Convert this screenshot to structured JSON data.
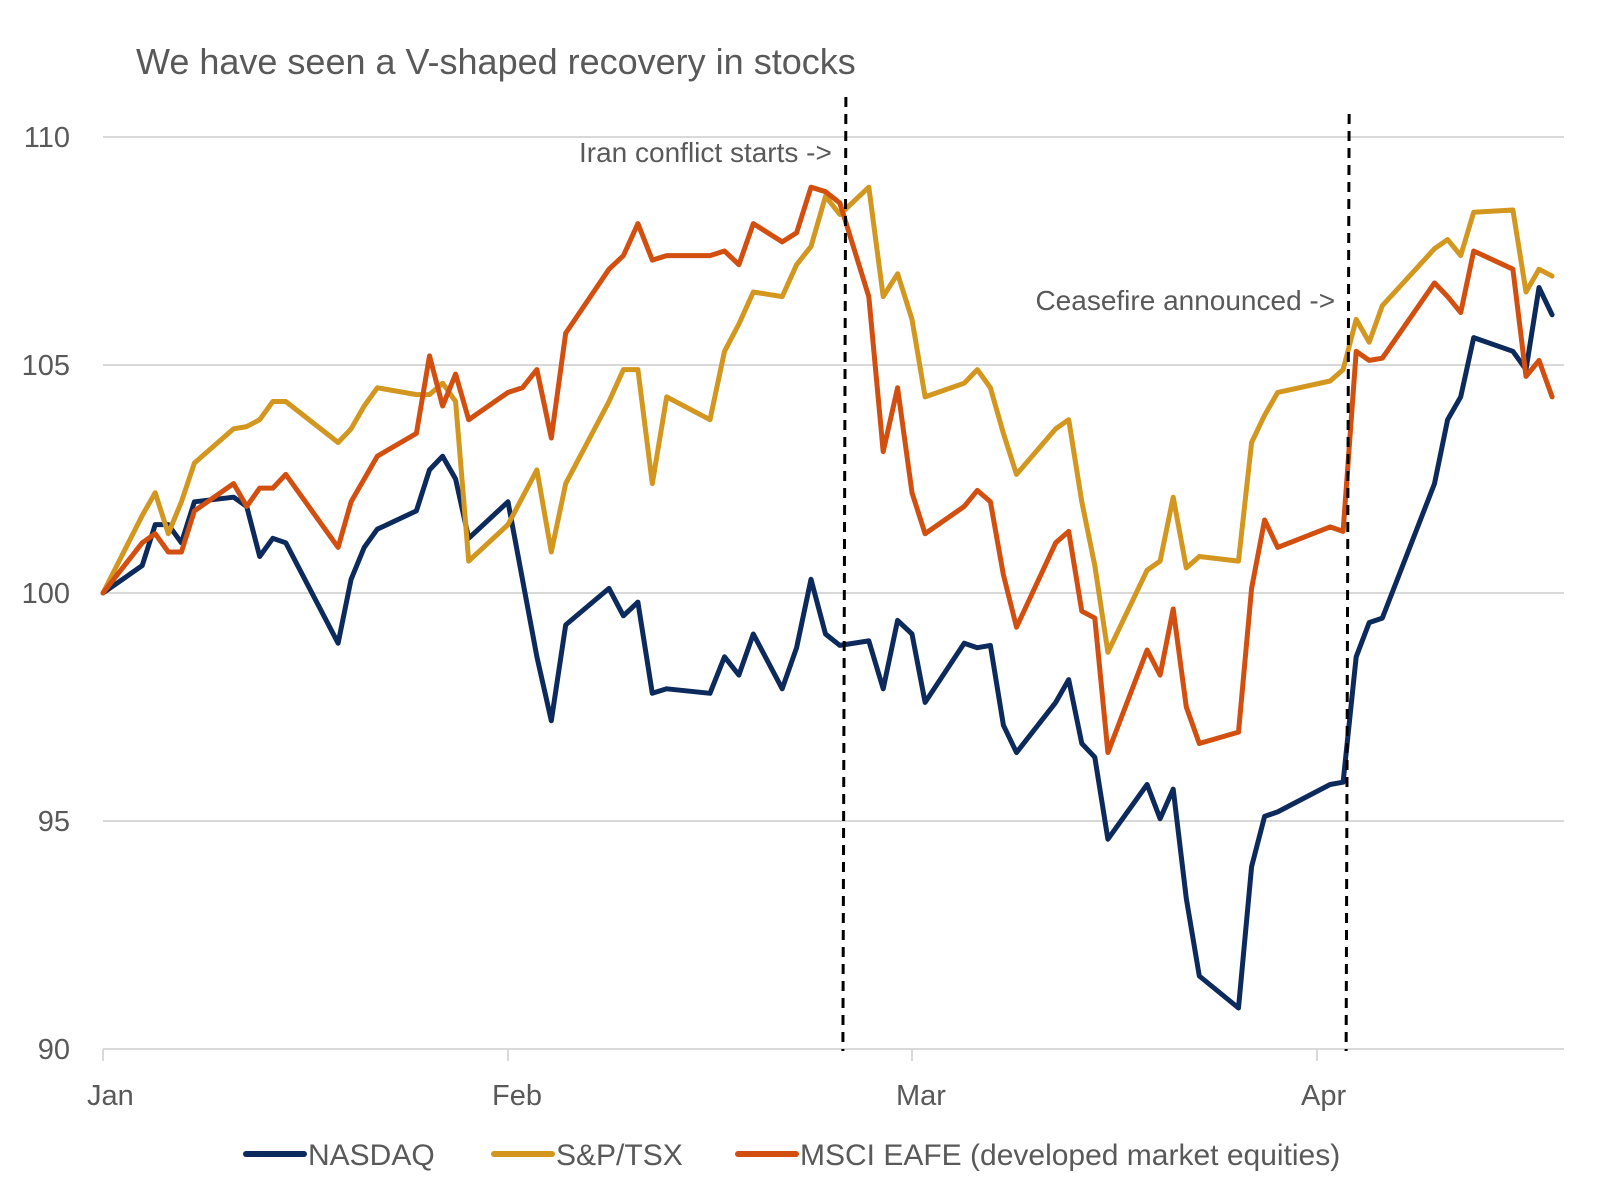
{
  "chart_data": {
    "type": "line",
    "title": "We have seen a V-shaped recovery in stocks",
    "xlabel": "",
    "ylabel": "",
    "ylim": [
      90,
      110
    ],
    "y_ticks": [
      "90",
      "95",
      "100",
      "105",
      "110"
    ],
    "x_ticks": [
      "Jan",
      "Feb",
      "Mar",
      "Apr"
    ],
    "grid": "horizontal",
    "legend": "bottom",
    "colors": {
      "NASDAQ": "#0c2a5c",
      "S&P/TSX": "#d3961f",
      "MSCI EAFE (developed market equities)": "#d24f10",
      "gridline": "#d9d9d9",
      "text": "#595959"
    },
    "annotations": [
      {
        "label": "Iran conflict starts ->",
        "x": "02-24",
        "style": "dashed vertical line"
      },
      {
        "label": "Ceasefire announced ->",
        "x": "04-03",
        "style": "dashed vertical line"
      }
    ],
    "series": [
      {
        "name": "NASDAQ",
        "points": [
          [
            "01-01",
            100
          ],
          [
            "01-04",
            100.6
          ],
          [
            "01-05",
            101.5
          ],
          [
            "01-06",
            101.5
          ],
          [
            "01-07",
            101.1
          ],
          [
            "01-08",
            102.0
          ],
          [
            "01-11",
            102.1
          ],
          [
            "01-12",
            101.9
          ],
          [
            "01-13",
            100.8
          ],
          [
            "01-14",
            101.2
          ],
          [
            "01-15",
            101.1
          ],
          [
            "01-19",
            98.9
          ],
          [
            "01-20",
            100.3
          ],
          [
            "01-21",
            101.0
          ],
          [
            "01-22",
            101.4
          ],
          [
            "01-25",
            101.8
          ],
          [
            "01-26",
            102.7
          ],
          [
            "01-27",
            103.0
          ],
          [
            "01-28",
            102.5
          ],
          [
            "01-29",
            101.2
          ],
          [
            "02-01",
            102.0
          ],
          [
            "02-03",
            98.6
          ],
          [
            "02-04",
            97.2
          ],
          [
            "02-05",
            99.3
          ],
          [
            "02-08",
            100.1
          ],
          [
            "02-09",
            99.5
          ],
          [
            "02-10",
            99.8
          ],
          [
            "02-11",
            97.8
          ],
          [
            "02-12",
            97.9
          ],
          [
            "02-15",
            97.8
          ],
          [
            "02-16",
            98.6
          ],
          [
            "02-17",
            98.2
          ],
          [
            "02-18",
            99.1
          ],
          [
            "02-20",
            97.9
          ],
          [
            "02-21",
            98.8
          ],
          [
            "02-22",
            100.3
          ],
          [
            "02-23",
            99.1
          ],
          [
            "02-24",
            98.85
          ],
          [
            "02-26",
            98.95
          ],
          [
            "02-27",
            97.9
          ],
          [
            "02-28",
            99.4
          ],
          [
            "03-01",
            99.1
          ],
          [
            "03-02",
            97.6
          ],
          [
            "03-05",
            98.9
          ],
          [
            "03-06",
            98.8
          ],
          [
            "03-07",
            98.85
          ],
          [
            "03-08",
            97.1
          ],
          [
            "03-09",
            96.5
          ],
          [
            "03-12",
            97.6
          ],
          [
            "03-13",
            98.1
          ],
          [
            "03-14",
            96.7
          ],
          [
            "03-15",
            96.4
          ],
          [
            "03-16",
            94.6
          ],
          [
            "03-19",
            95.8
          ],
          [
            "03-20",
            95.05
          ],
          [
            "03-21",
            95.7
          ],
          [
            "03-22",
            93.3
          ],
          [
            "03-23",
            91.6
          ],
          [
            "03-26",
            90.9
          ],
          [
            "03-27",
            94.0
          ],
          [
            "03-28",
            95.1
          ],
          [
            "03-29",
            95.2
          ],
          [
            "04-02",
            95.8
          ],
          [
            "04-03",
            95.85
          ],
          [
            "04-04",
            98.6
          ],
          [
            "04-05",
            99.35
          ],
          [
            "04-06",
            99.45
          ],
          [
            "04-10",
            102.4
          ],
          [
            "04-11",
            103.8
          ],
          [
            "04-12",
            104.3
          ],
          [
            "04-13",
            105.6
          ],
          [
            "04-16",
            105.3
          ],
          [
            "04-17",
            104.9
          ],
          [
            "04-18",
            106.7
          ],
          [
            "04-19",
            106.1
          ]
        ]
      },
      {
        "name": "S&P/TSX",
        "points": [
          [
            "01-01",
            100
          ],
          [
            "01-04",
            101.7
          ],
          [
            "01-05",
            102.2
          ],
          [
            "01-06",
            101.3
          ],
          [
            "01-07",
            102.0
          ],
          [
            "01-08",
            102.85
          ],
          [
            "01-11",
            103.6
          ],
          [
            "01-12",
            103.65
          ],
          [
            "01-13",
            103.8
          ],
          [
            "01-14",
            104.2
          ],
          [
            "01-15",
            104.2
          ],
          [
            "01-19",
            103.3
          ],
          [
            "01-20",
            103.6
          ],
          [
            "01-21",
            104.1
          ],
          [
            "01-22",
            104.5
          ],
          [
            "01-25",
            104.35
          ],
          [
            "01-26",
            104.35
          ],
          [
            "01-27",
            104.6
          ],
          [
            "01-28",
            104.2
          ],
          [
            "01-29",
            100.7
          ],
          [
            "02-01",
            101.5
          ],
          [
            "02-03",
            102.7
          ],
          [
            "02-04",
            100.9
          ],
          [
            "02-05",
            102.4
          ],
          [
            "02-08",
            104.2
          ],
          [
            "02-09",
            104.9
          ],
          [
            "02-10",
            104.9
          ],
          [
            "02-11",
            102.4
          ],
          [
            "02-12",
            104.3
          ],
          [
            "02-15",
            103.8
          ],
          [
            "02-16",
            105.3
          ],
          [
            "02-17",
            105.9
          ],
          [
            "02-18",
            106.6
          ],
          [
            "02-20",
            106.5
          ],
          [
            "02-21",
            107.2
          ],
          [
            "02-22",
            107.6
          ],
          [
            "02-23",
            108.7
          ],
          [
            "02-24",
            108.3
          ],
          [
            "02-26",
            108.9
          ],
          [
            "02-27",
            106.5
          ],
          [
            "02-28",
            107.0
          ],
          [
            "03-01",
            106.0
          ],
          [
            "03-02",
            104.3
          ],
          [
            "03-05",
            104.6
          ],
          [
            "03-06",
            104.9
          ],
          [
            "03-07",
            104.5
          ],
          [
            "03-08",
            103.5
          ],
          [
            "03-09",
            102.6
          ],
          [
            "03-12",
            103.6
          ],
          [
            "03-13",
            103.8
          ],
          [
            "03-14",
            102.0
          ],
          [
            "03-15",
            100.6
          ],
          [
            "03-16",
            98.7
          ],
          [
            "03-19",
            100.5
          ],
          [
            "03-20",
            100.7
          ],
          [
            "03-21",
            102.1
          ],
          [
            "03-22",
            100.55
          ],
          [
            "03-23",
            100.8
          ],
          [
            "03-26",
            100.7
          ],
          [
            "03-27",
            103.3
          ],
          [
            "03-28",
            103.9
          ],
          [
            "03-29",
            104.4
          ],
          [
            "04-02",
            104.65
          ],
          [
            "04-03",
            104.9
          ],
          [
            "04-04",
            106.0
          ],
          [
            "04-05",
            105.5
          ],
          [
            "04-06",
            106.3
          ],
          [
            "04-10",
            107.55
          ],
          [
            "04-11",
            107.75
          ],
          [
            "04-12",
            107.4
          ],
          [
            "04-13",
            108.35
          ],
          [
            "04-16",
            108.4
          ],
          [
            "04-17",
            106.6
          ],
          [
            "04-18",
            107.1
          ],
          [
            "04-19",
            106.95
          ]
        ]
      },
      {
        "name": "MSCI EAFE (developed market equities)",
        "points": [
          [
            "01-01",
            100
          ],
          [
            "01-04",
            101.1
          ],
          [
            "01-05",
            101.3
          ],
          [
            "01-06",
            100.9
          ],
          [
            "01-07",
            100.9
          ],
          [
            "01-08",
            101.8
          ],
          [
            "01-11",
            102.4
          ],
          [
            "01-12",
            101.9
          ],
          [
            "01-13",
            102.3
          ],
          [
            "01-14",
            102.3
          ],
          [
            "01-15",
            102.6
          ],
          [
            "01-19",
            101.0
          ],
          [
            "01-20",
            102.0
          ],
          [
            "01-21",
            102.5
          ],
          [
            "01-22",
            103.0
          ],
          [
            "01-25",
            103.5
          ],
          [
            "01-26",
            105.2
          ],
          [
            "01-27",
            104.1
          ],
          [
            "01-28",
            104.8
          ],
          [
            "01-29",
            103.8
          ],
          [
            "02-01",
            104.4
          ],
          [
            "02-02",
            104.5
          ],
          [
            "02-03",
            104.9
          ],
          [
            "02-04",
            103.4
          ],
          [
            "02-05",
            105.7
          ],
          [
            "02-08",
            107.1
          ],
          [
            "02-09",
            107.4
          ],
          [
            "02-10",
            108.1
          ],
          [
            "02-11",
            107.3
          ],
          [
            "02-12",
            107.4
          ],
          [
            "02-15",
            107.4
          ],
          [
            "02-16",
            107.5
          ],
          [
            "02-17",
            107.2
          ],
          [
            "02-18",
            108.1
          ],
          [
            "02-20",
            107.7
          ],
          [
            "02-21",
            107.9
          ],
          [
            "02-22",
            108.9
          ],
          [
            "02-23",
            108.8
          ],
          [
            "02-24",
            108.55
          ],
          [
            "02-26",
            106.5
          ],
          [
            "02-27",
            103.1
          ],
          [
            "02-28",
            104.5
          ],
          [
            "03-01",
            102.2
          ],
          [
            "03-02",
            101.3
          ],
          [
            "03-05",
            101.9
          ],
          [
            "03-06",
            102.25
          ],
          [
            "03-07",
            102.0
          ],
          [
            "03-08",
            100.4
          ],
          [
            "03-09",
            99.25
          ],
          [
            "03-12",
            101.1
          ],
          [
            "03-13",
            101.35
          ],
          [
            "03-14",
            99.6
          ],
          [
            "03-15",
            99.45
          ],
          [
            "03-16",
            96.5
          ],
          [
            "03-19",
            98.75
          ],
          [
            "03-20",
            98.2
          ],
          [
            "03-21",
            99.65
          ],
          [
            "03-22",
            97.5
          ],
          [
            "03-23",
            96.7
          ],
          [
            "03-26",
            96.95
          ],
          [
            "03-27",
            100.1
          ],
          [
            "03-28",
            101.6
          ],
          [
            "03-29",
            101.0
          ],
          [
            "04-02",
            101.45
          ],
          [
            "04-03",
            101.35
          ],
          [
            "04-04",
            105.3
          ],
          [
            "04-05",
            105.1
          ],
          [
            "04-06",
            105.15
          ],
          [
            "04-10",
            106.8
          ],
          [
            "04-11",
            106.5
          ],
          [
            "04-12",
            106.15
          ],
          [
            "04-13",
            107.5
          ],
          [
            "04-16",
            107.1
          ],
          [
            "04-17",
            104.75
          ],
          [
            "04-18",
            105.1
          ],
          [
            "04-19",
            104.3
          ]
        ]
      }
    ]
  }
}
